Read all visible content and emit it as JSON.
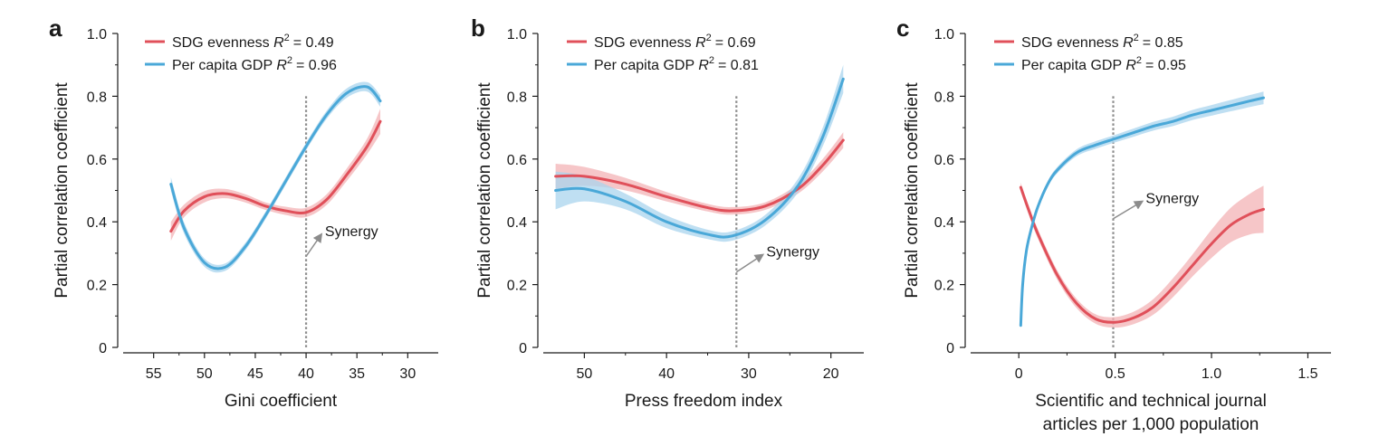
{
  "colors": {
    "sdg": "#e0505a",
    "sdg_band": "#f3b3b6",
    "gdp": "#4aa8d8",
    "gdp_band": "#a9d4ee",
    "axis": "#1a1a1a",
    "threshold": "#8c8c8c",
    "arrow": "#8c8c8c"
  },
  "chart_data": [
    {
      "type": "line",
      "panel_label": "a",
      "xlabel": [
        "Gini coefficient"
      ],
      "ylabel": "Partial correlation coefficient",
      "xlim": [
        58,
        27
      ],
      "ylim": [
        0,
        1.0
      ],
      "xticks": [
        55,
        50,
        45,
        40,
        35,
        30
      ],
      "xtick_labels": [
        "55",
        "50",
        "45",
        "40",
        "35",
        "30"
      ],
      "yticks": [
        0,
        0.2,
        0.4,
        0.6,
        0.8,
        1.0
      ],
      "ytick_labels": [
        "0",
        "0.2",
        "0.4",
        "0.6",
        "0.8",
        "1.0"
      ],
      "threshold_x": 40,
      "annotation": {
        "text": "Synergy",
        "tail": [
          40,
          0.29
        ],
        "head": [
          38.5,
          0.36
        ]
      },
      "series": [
        {
          "key": "sdg",
          "legend": {
            "prefix": "SDG evenness ",
            "r2": "= 0.49"
          },
          "x": [
            53.3,
            52,
            50,
            48,
            46,
            44,
            42,
            40,
            38,
            36,
            34,
            32.7
          ],
          "y": [
            0.37,
            0.435,
            0.48,
            0.49,
            0.475,
            0.45,
            0.435,
            0.43,
            0.47,
            0.55,
            0.64,
            0.72
          ],
          "band": [
            0.03,
            0.02,
            0.018,
            0.015,
            0.013,
            0.012,
            0.013,
            0.015,
            0.017,
            0.02,
            0.025,
            0.04
          ]
        },
        {
          "key": "gdp",
          "legend": {
            "prefix": "Per capita GDP ",
            "r2": "= 0.96"
          },
          "x": [
            53.3,
            52,
            50,
            48,
            46,
            44,
            42,
            40,
            38,
            36,
            34,
            32.7
          ],
          "y": [
            0.52,
            0.38,
            0.27,
            0.255,
            0.32,
            0.42,
            0.53,
            0.64,
            0.74,
            0.81,
            0.83,
            0.785
          ],
          "band": [
            0.022,
            0.018,
            0.013,
            0.012,
            0.012,
            0.012,
            0.012,
            0.012,
            0.013,
            0.015,
            0.015,
            0.018
          ]
        }
      ]
    },
    {
      "type": "line",
      "panel_label": "b",
      "xlabel": [
        "Press freedom index"
      ],
      "ylabel": "Partial correlation coefficient",
      "xlim": [
        55,
        16
      ],
      "ylim": [
        0,
        1.0
      ],
      "xticks": [
        50,
        40,
        30,
        20
      ],
      "xtick_labels": [
        "50",
        "40",
        "30",
        "20"
      ],
      "yticks": [
        0,
        0.2,
        0.4,
        0.6,
        0.8,
        1.0
      ],
      "ytick_labels": [
        "0",
        "0.2",
        "0.4",
        "0.6",
        "0.8",
        "1.0"
      ],
      "threshold_x": 31.5,
      "annotation": {
        "text": "Synergy",
        "tail": [
          31.5,
          0.24
        ],
        "head": [
          28.3,
          0.295
        ]
      },
      "series": [
        {
          "key": "sdg",
          "legend": {
            "prefix": "SDG evenness ",
            "r2": "= 0.69"
          },
          "x": [
            53.5,
            50,
            45,
            40,
            35,
            32,
            28,
            24,
            21,
            18.5
          ],
          "y": [
            0.545,
            0.545,
            0.52,
            0.48,
            0.445,
            0.435,
            0.45,
            0.505,
            0.58,
            0.66
          ],
          "band": [
            0.04,
            0.03,
            0.02,
            0.015,
            0.012,
            0.012,
            0.012,
            0.015,
            0.02,
            0.025
          ]
        },
        {
          "key": "gdp",
          "legend": {
            "prefix": "Per capita GDP ",
            "r2": "= 0.81"
          },
          "x": [
            53.5,
            50,
            45,
            40,
            35,
            32,
            28,
            24,
            21,
            18.5
          ],
          "y": [
            0.5,
            0.505,
            0.465,
            0.4,
            0.36,
            0.355,
            0.405,
            0.515,
            0.67,
            0.855
          ],
          "band": [
            0.06,
            0.04,
            0.025,
            0.02,
            0.015,
            0.015,
            0.017,
            0.022,
            0.03,
            0.045
          ]
        }
      ]
    },
    {
      "type": "line",
      "panel_label": "c",
      "xlabel": [
        "Scientific and technical journal",
        "articles per 1,000 population"
      ],
      "ylabel": "Partial correlation coefficient",
      "xlim": [
        -0.25,
        1.62
      ],
      "ylim": [
        0,
        1.0
      ],
      "xticks": [
        0,
        0.5,
        1.0,
        1.5
      ],
      "xtick_labels": [
        "0",
        "0.5",
        "1.0",
        "1.5"
      ],
      "yticks": [
        0,
        0.2,
        0.4,
        0.6,
        0.8,
        1.0
      ],
      "ytick_labels": [
        "0",
        "0.2",
        "0.4",
        "0.6",
        "0.8",
        "1.0"
      ],
      "threshold_x": 0.49,
      "annotation": {
        "text": "Synergy",
        "tail": [
          0.49,
          0.41
        ],
        "head": [
          0.64,
          0.465
        ]
      },
      "series": [
        {
          "key": "sdg",
          "legend": {
            "prefix": "SDG evenness ",
            "r2": "= 0.85"
          },
          "x": [
            0.01,
            0.05,
            0.1,
            0.2,
            0.3,
            0.4,
            0.5,
            0.6,
            0.7,
            0.8,
            0.9,
            1.0,
            1.1,
            1.2,
            1.27
          ],
          "y": [
            0.51,
            0.44,
            0.36,
            0.23,
            0.14,
            0.09,
            0.08,
            0.095,
            0.13,
            0.19,
            0.26,
            0.33,
            0.39,
            0.425,
            0.44
          ],
          "band": [
            0.015,
            0.015,
            0.015,
            0.015,
            0.015,
            0.015,
            0.017,
            0.02,
            0.025,
            0.03,
            0.035,
            0.045,
            0.055,
            0.065,
            0.075
          ]
        },
        {
          "key": "gdp",
          "legend": {
            "prefix": "Per capita GDP ",
            "r2": "= 0.95"
          },
          "x": [
            0.01,
            0.02,
            0.04,
            0.07,
            0.1,
            0.15,
            0.2,
            0.3,
            0.4,
            0.5,
            0.6,
            0.7,
            0.8,
            0.9,
            1.0,
            1.1,
            1.2,
            1.27
          ],
          "y": [
            0.07,
            0.2,
            0.31,
            0.39,
            0.45,
            0.52,
            0.565,
            0.62,
            0.645,
            0.665,
            0.685,
            0.705,
            0.72,
            0.74,
            0.755,
            0.77,
            0.785,
            0.795
          ],
          "band": [
            0.01,
            0.01,
            0.01,
            0.01,
            0.01,
            0.01,
            0.01,
            0.011,
            0.012,
            0.012,
            0.013,
            0.014,
            0.015,
            0.016,
            0.017,
            0.018,
            0.019,
            0.02
          ]
        }
      ]
    }
  ]
}
